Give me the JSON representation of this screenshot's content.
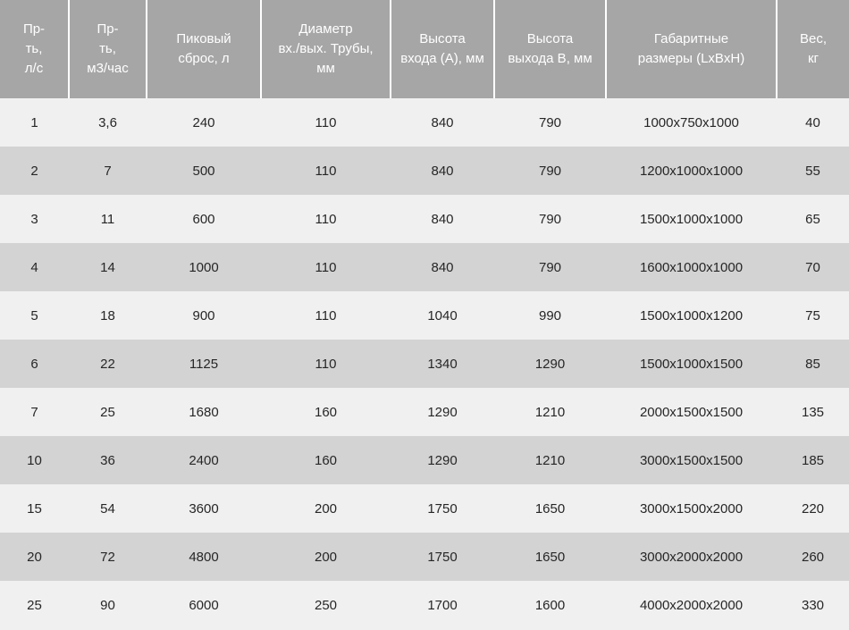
{
  "colors": {
    "header_bg": "#a6a6a6",
    "header_text": "#ffffff",
    "row_light": "#f0f0f0",
    "row_dark": "#d3d3d3",
    "cell_text": "#262626",
    "separator": "#ffffff"
  },
  "chart_data": {
    "type": "table",
    "title": "",
    "legend": "none",
    "grid": "striped-rows",
    "columns": [
      {
        "label": "Пр-\nть,\nл/с"
      },
      {
        "label": "Пр-\nть,\nм3/час"
      },
      {
        "label": "Пиковый\nсброс, л"
      },
      {
        "label": "Диаметр\nвх./вых. Трубы,\nмм"
      },
      {
        "label": "Высота\nвхода (A), мм"
      },
      {
        "label": "Высота\nвыхода B, мм"
      },
      {
        "label": "Габаритные\nразмеры (LxBxH)"
      },
      {
        "label": "Вес,\nкг"
      }
    ],
    "rows": [
      [
        "1",
        "3,6",
        "240",
        "110",
        "840",
        "790",
        "1000x750x1000",
        "40"
      ],
      [
        "2",
        "7",
        "500",
        "110",
        "840",
        "790",
        "1200x1000x1000",
        "55"
      ],
      [
        "3",
        "11",
        "600",
        "110",
        "840",
        "790",
        "1500x1000x1000",
        "65"
      ],
      [
        "4",
        "14",
        "1000",
        "110",
        "840",
        "790",
        "1600x1000x1000",
        "70"
      ],
      [
        "5",
        "18",
        "900",
        "110",
        "1040",
        "990",
        "1500x1000x1200",
        "75"
      ],
      [
        "6",
        "22",
        "1125",
        "110",
        "1340",
        "1290",
        "1500x1000x1500",
        "85"
      ],
      [
        "7",
        "25",
        "1680",
        "160",
        "1290",
        "1210",
        "2000x1500x1500",
        "135"
      ],
      [
        "10",
        "36",
        "2400",
        "160",
        "1290",
        "1210",
        "3000x1500x1500",
        "185"
      ],
      [
        "15",
        "54",
        "3600",
        "200",
        "1750",
        "1650",
        "3000x1500x2000",
        "220"
      ],
      [
        "20",
        "72",
        "4800",
        "200",
        "1750",
        "1650",
        "3000x2000x2000",
        "260"
      ],
      [
        "25",
        "90",
        "6000",
        "250",
        "1700",
        "1600",
        "4000x2000x2000",
        "330"
      ]
    ]
  }
}
